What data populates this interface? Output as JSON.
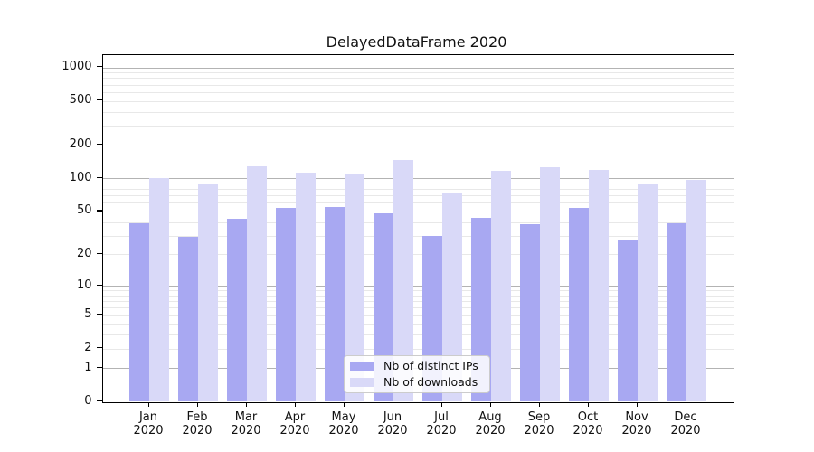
{
  "title": "DelayedDataFrame 2020",
  "chart_data": {
    "type": "bar",
    "title": "DelayedDataFrame 2020",
    "categories": [
      "Jan",
      "Feb",
      "Mar",
      "Apr",
      "May",
      "Jun",
      "Jul",
      "Aug",
      "Sep",
      "Oct",
      "Nov",
      "Dec"
    ],
    "category_year": "2020",
    "series": [
      {
        "name": "Nb of distinct IPs",
        "color": "#a8a8f2",
        "values": [
          39,
          29,
          43,
          54,
          55,
          48,
          30,
          44,
          38,
          54,
          27,
          39
        ]
      },
      {
        "name": "Nb of downloads",
        "color": "#d9d9f8",
        "values": [
          101,
          89,
          128,
          113,
          110,
          148,
          73,
          117,
          127,
          120,
          90,
          97
        ]
      }
    ],
    "xlabel": "",
    "ylabel": "",
    "yscale": "log10(value+1), bottom at 0",
    "yticks": [
      0,
      1,
      2,
      5,
      10,
      20,
      50,
      100,
      200,
      500,
      1000
    ],
    "major_gridlines": [
      1,
      10,
      100,
      1000
    ],
    "minor_gridlines": [
      2,
      3,
      4,
      5,
      6,
      7,
      8,
      9,
      20,
      30,
      40,
      50,
      60,
      70,
      80,
      90,
      200,
      300,
      400,
      500,
      600,
      700,
      800,
      900
    ],
    "ylim": [
      0,
      1300
    ],
    "grid": true,
    "legend_position": "lower center"
  },
  "colors": {
    "bar_dark": "#a8a8f2",
    "bar_light": "#d9d9f8",
    "grid_major": "#b3b3b3",
    "grid_minor": "#e8e8e8",
    "text": "#111111",
    "legend_border": "#cccccc"
  }
}
